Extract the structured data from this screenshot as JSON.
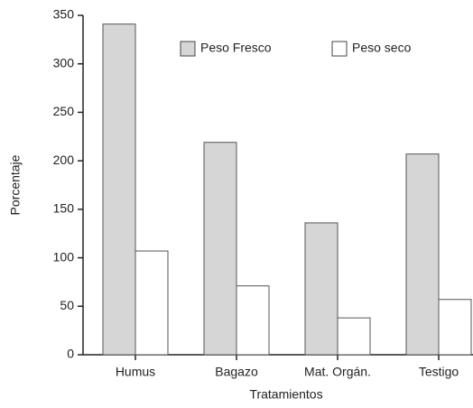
{
  "chart_data": {
    "type": "bar",
    "categories": [
      "Humus",
      "Bagazo",
      "Mat. Orgán.",
      "Testigo"
    ],
    "series": [
      {
        "name": "Peso Fresco",
        "color": "#d6d6d6",
        "values": [
          341,
          219,
          136,
          207
        ]
      },
      {
        "name": "Peso seco",
        "color": "#ffffff",
        "values": [
          107,
          71,
          38,
          57
        ]
      }
    ],
    "ylim": [
      0,
      350
    ],
    "yticks": [
      0,
      50,
      100,
      150,
      200,
      250,
      300,
      350
    ],
    "ylabel": "Porcentaje",
    "xlabel": "Tratamientos",
    "legend": "top-right",
    "grid": false
  }
}
